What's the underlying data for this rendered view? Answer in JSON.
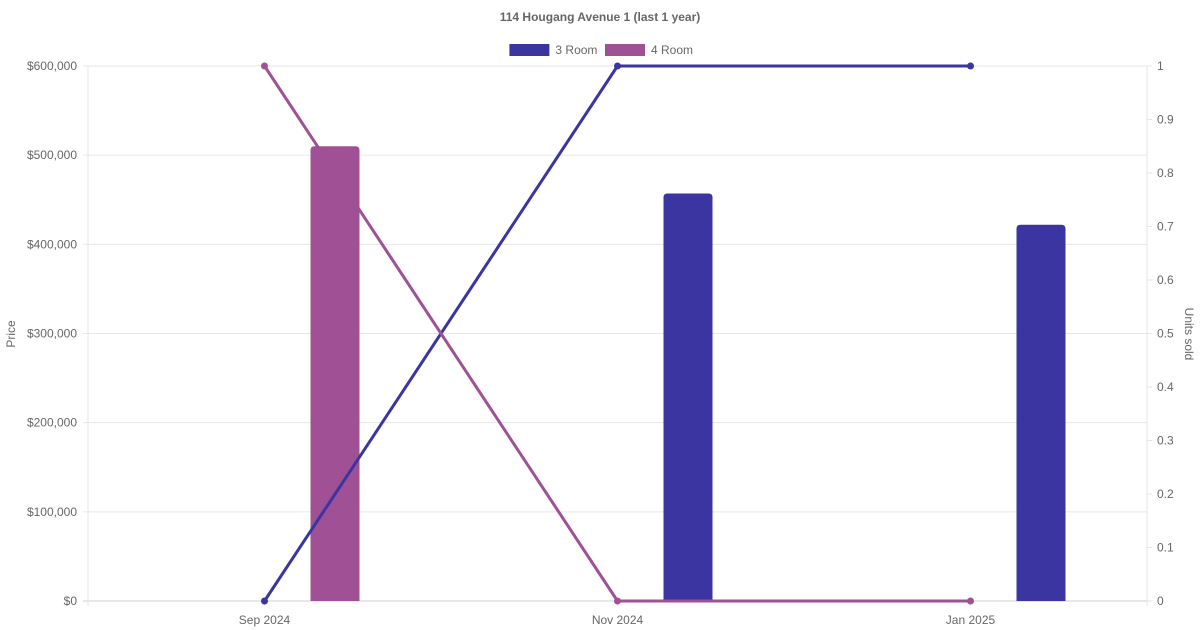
{
  "chart_data": {
    "type": "bar",
    "title": "114 Hougang Avenue 1 (last 1 year)",
    "categories": [
      "Sep 2024",
      "Nov 2024",
      "Jan 2025"
    ],
    "y_left": {
      "label": "Price",
      "min": 0,
      "max": 600000,
      "ticks": [
        "$0",
        "$100,000",
        "$200,000",
        "$300,000",
        "$400,000",
        "$500,000",
        "$600,000"
      ]
    },
    "y_right": {
      "label": "Units sold",
      "min": 0,
      "max": 1,
      "ticks": [
        "0",
        "0.1",
        "0.2",
        "0.3",
        "0.4",
        "0.5",
        "0.6",
        "0.7",
        "0.8",
        "0.9",
        "1"
      ]
    },
    "legend_position": "top",
    "grid": true,
    "series": [
      {
        "name": "3 Room",
        "color": "#3a35a0",
        "price": [
          null,
          457000,
          422000
        ],
        "units_sold": [
          0,
          1,
          1
        ]
      },
      {
        "name": "4 Room",
        "color": "#a05094",
        "price": [
          510000,
          null,
          null
        ],
        "units_sold": [
          1,
          0,
          0
        ]
      }
    ]
  }
}
